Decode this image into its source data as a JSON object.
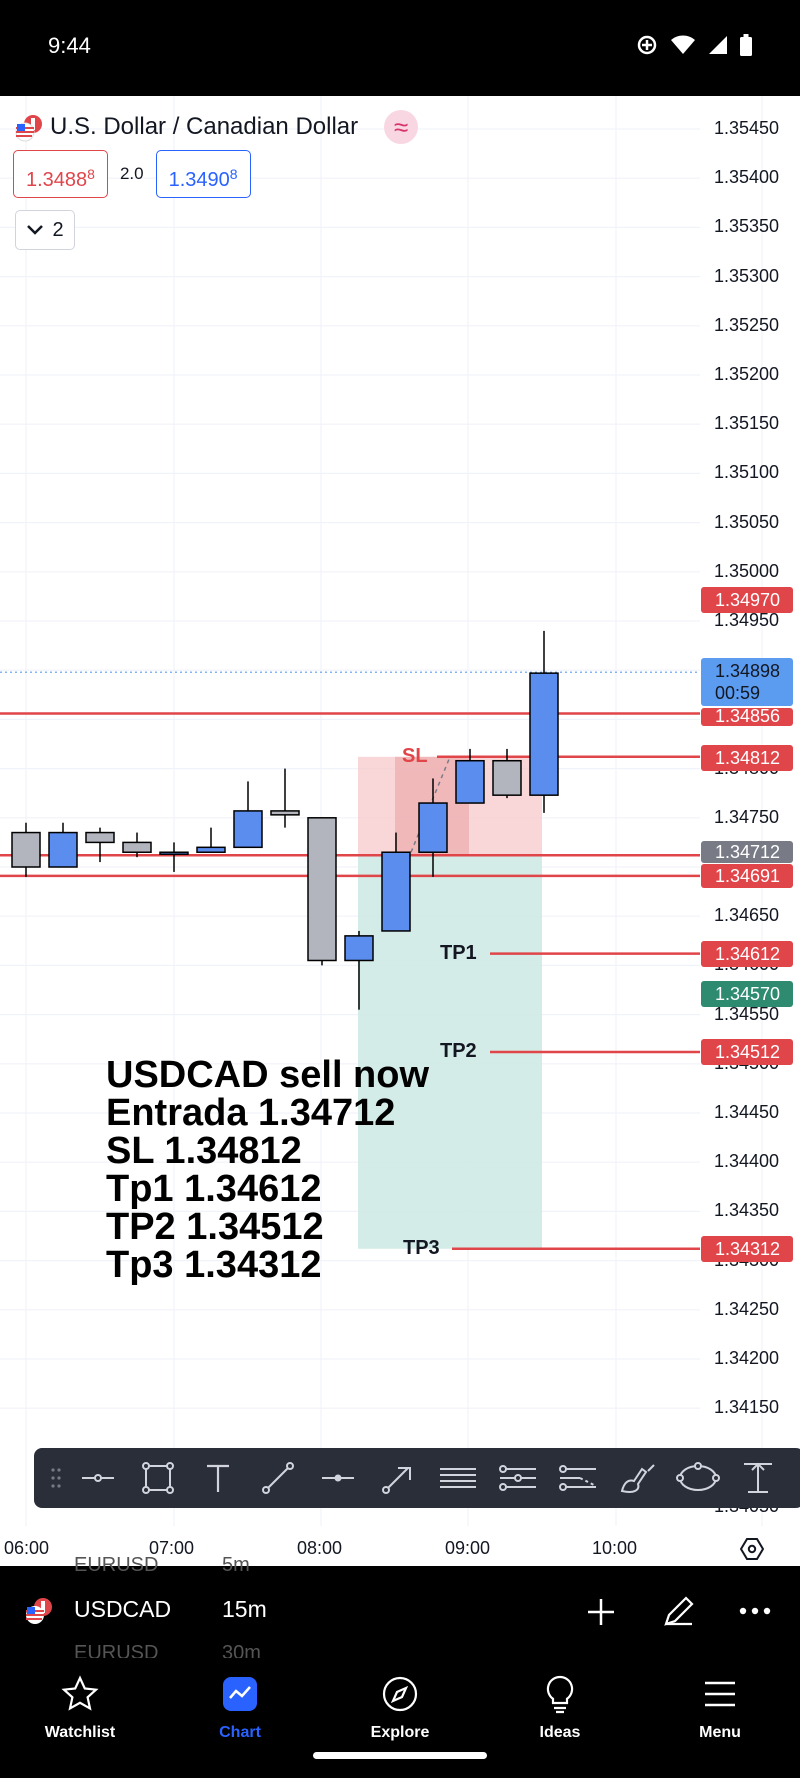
{
  "status": {
    "time": "9:44"
  },
  "header": {
    "symbol_title": "U.S. Dollar / Canadian Dollar",
    "indicator_glyph": "≈",
    "sell_price_main": "1.3488",
    "sell_price_sup": "8",
    "spread": "2.0",
    "buy_price_main": "1.3490",
    "buy_price_sup": "8",
    "collapse_count": "2"
  },
  "price_axis": {
    "ticks": [
      "1.35450",
      "1.35400",
      "1.35350",
      "1.35300",
      "1.35250",
      "1.35200",
      "1.35150",
      "1.35100",
      "1.35050",
      "1.35000",
      "1.34950",
      "1.34800",
      "1.34750",
      "1.34650",
      "1.34600",
      "1.34550",
      "1.34500",
      "1.34450",
      "1.34400",
      "1.34350",
      "1.34300",
      "1.34250",
      "1.34200",
      "1.34150",
      "1.34050"
    ],
    "tags": {
      "red_top": "1.34970",
      "current_price": "1.34898",
      "countdown": "00:59",
      "line_1": "1.34856",
      "sl": "1.34812",
      "entry": "1.34712",
      "line_2": "1.34691",
      "tp1": "1.34612",
      "green": "1.34570",
      "tp2": "1.34512",
      "tp3": "1.34312"
    }
  },
  "lines": {
    "sl_label": "SL",
    "tp1_label": "TP1",
    "tp2_label": "TP2",
    "tp3_label": "TP3"
  },
  "annotation": [
    "USDCAD sell now",
    "Entrada 1.34712",
    "SL 1.34812",
    "Tp1 1.34612",
    "TP2 1.34512",
    "Tp3 1.34312"
  ],
  "time_axis": [
    "06:00",
    "07:00",
    "08:00",
    "09:00",
    "10:00"
  ],
  "chart_data": {
    "type": "candlestick",
    "symbol": "USDCAD",
    "interval": "15m",
    "candles": [
      {
        "o": 1.34735,
        "h": 1.34745,
        "l": 1.3469,
        "c": 1.347
      },
      {
        "o": 1.347,
        "h": 1.34745,
        "l": 1.347,
        "c": 1.34735
      },
      {
        "o": 1.34735,
        "h": 1.3474,
        "l": 1.34705,
        "c": 1.34725
      },
      {
        "o": 1.34725,
        "h": 1.34735,
        "l": 1.3471,
        "c": 1.34715
      },
      {
        "o": 1.34715,
        "h": 1.34725,
        "l": 1.34695,
        "c": 1.34715
      },
      {
        "o": 1.34715,
        "h": 1.3474,
        "l": 1.34715,
        "c": 1.3472
      },
      {
        "o": 1.3472,
        "h": 1.34787,
        "l": 1.3472,
        "c": 1.34757
      },
      {
        "o": 1.34757,
        "h": 1.348,
        "l": 1.3474,
        "c": 1.34753
      },
      {
        "o": 1.3475,
        "h": 1.3475,
        "l": 1.346,
        "c": 1.34605
      },
      {
        "o": 1.34605,
        "h": 1.34635,
        "l": 1.34555,
        "c": 1.3463
      },
      {
        "o": 1.34635,
        "h": 1.34735,
        "l": 1.34635,
        "c": 1.34715
      },
      {
        "o": 1.34715,
        "h": 1.3479,
        "l": 1.3469,
        "c": 1.34765
      },
      {
        "o": 1.34765,
        "h": 1.3482,
        "l": 1.34765,
        "c": 1.34808
      },
      {
        "o": 1.34808,
        "h": 1.3482,
        "l": 1.3477,
        "c": 1.34773
      },
      {
        "o": 1.34773,
        "h": 1.3494,
        "l": 1.34755,
        "c": 1.34897
      }
    ]
  },
  "toolbar_tools": [
    "horizontal-line",
    "rectangle",
    "text",
    "trend-line",
    "horizontal-ray",
    "arrow",
    "parallel-channel",
    "fib-retracement",
    "pitchfork",
    "brush",
    "ellipse",
    "anchored-vwap"
  ],
  "strip": {
    "ghost_top": "EURUSD",
    "ghost_top_interval": "5m",
    "symbol": "USDCAD",
    "interval": "15m",
    "ghost_bottom": "EURUSD",
    "ghost_bottom_interval": "30m"
  },
  "nav": [
    {
      "label": "Watchlist",
      "icon": "star-icon"
    },
    {
      "label": "Chart",
      "icon": "chart-icon"
    },
    {
      "label": "Explore",
      "icon": "compass-icon"
    },
    {
      "label": "Ideas",
      "icon": "lightbulb-icon"
    },
    {
      "label": "Menu",
      "icon": "menu-icon"
    }
  ],
  "colors": {
    "bull": "#5b8def",
    "bear": "#b2b5be",
    "red_line": "#e0454a",
    "green_tag": "#2e8b70",
    "blue_tag": "#5b9cf0",
    "gray_tag": "#787b86"
  }
}
